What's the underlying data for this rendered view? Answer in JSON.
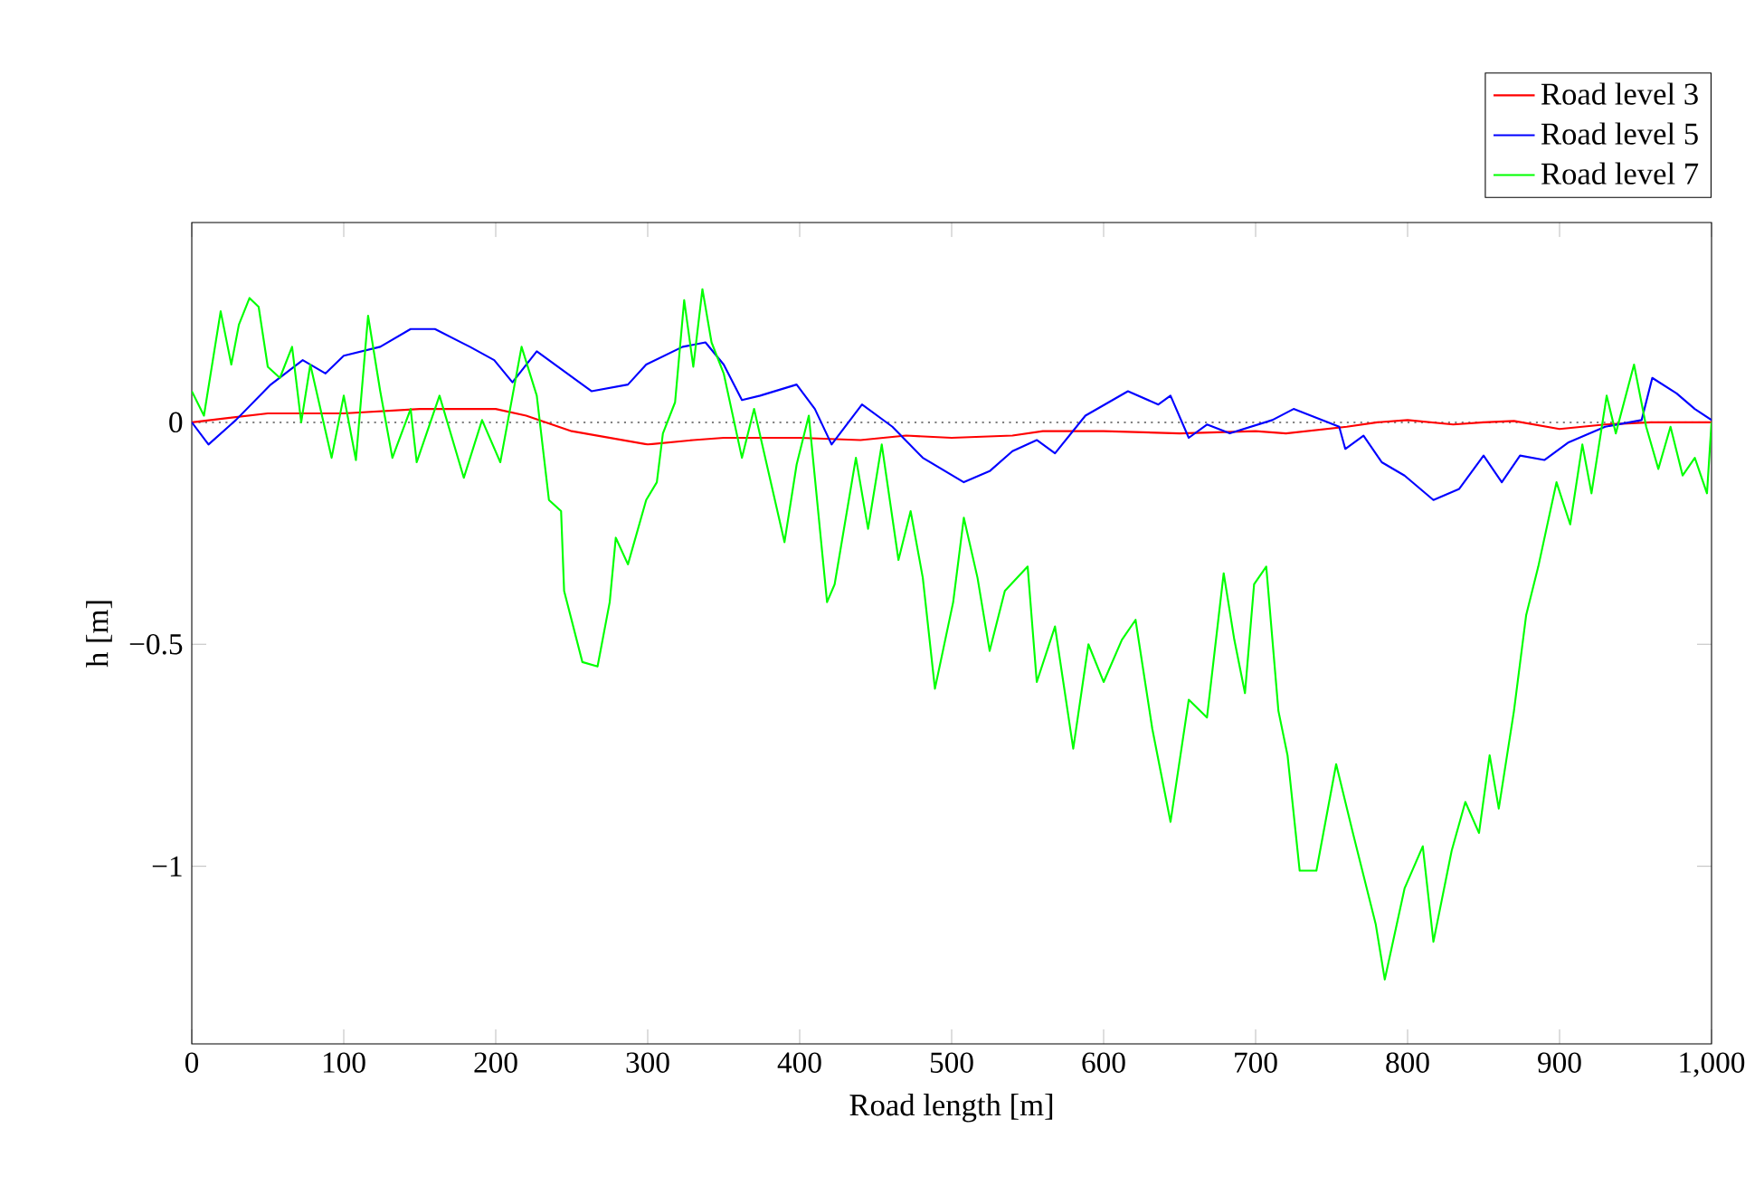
{
  "chart_data": {
    "type": "line",
    "xlabel": "Road length [m]",
    "ylabel": "h [m]",
    "xlim": [
      0,
      1000
    ],
    "ylim": [
      -1.4,
      0.45
    ],
    "xticks": [
      0,
      100,
      200,
      300,
      400,
      500,
      600,
      700,
      800,
      900,
      {
        "value": 1000,
        "label": "1,000"
      }
    ],
    "yticks": [
      {
        "value": -1,
        "label": "−1"
      },
      {
        "value": -0.5,
        "label": "−0.5"
      },
      0
    ],
    "legend": "top right",
    "grid": false,
    "marker": "none",
    "line_style": "solid",
    "ref_lines": [
      {
        "axis": "y",
        "value": 0,
        "color": "#808080",
        "line_style": "dotted"
      }
    ],
    "series": [
      {
        "name": "Road level 3",
        "color": "#ff0000",
        "x": [
          0,
          50,
          100,
          150,
          200,
          220,
          250,
          300,
          330,
          350,
          400,
          440,
          470,
          500,
          540,
          560,
          600,
          650,
          700,
          720,
          760,
          780,
          800,
          830,
          850,
          870,
          900,
          930,
          960,
          1000
        ],
        "values": [
          0,
          0.02,
          0.02,
          0.03,
          0.03,
          0.015,
          -0.02,
          -0.05,
          -0.04,
          -0.035,
          -0.035,
          -0.04,
          -0.03,
          -0.035,
          -0.03,
          -0.02,
          -0.02,
          -0.025,
          -0.02,
          -0.025,
          -0.01,
          0,
          0.005,
          -0.005,
          0,
          0.003,
          -0.015,
          -0.005,
          0,
          0
        ]
      },
      {
        "name": "Road level 5",
        "color": "#0000ff",
        "x": [
          0,
          11,
          29,
          52,
          73,
          88,
          100,
          124,
          144,
          160,
          183,
          199,
          211,
          227,
          255,
          263,
          287,
          299,
          323,
          338,
          350,
          362,
          374,
          398,
          410,
          421,
          441,
          461,
          481,
          508,
          525,
          540,
          556,
          568,
          588,
          616,
          636,
          644,
          656,
          668,
          683,
          711,
          725,
          755,
          759,
          771,
          783,
          798,
          817,
          834,
          850,
          862,
          874,
          890,
          906,
          930,
          954,
          961,
          977,
          989,
          1000
        ],
        "values": [
          0,
          -0.05,
          0.005,
          0.085,
          0.14,
          0.11,
          0.15,
          0.17,
          0.21,
          0.21,
          0.17,
          0.14,
          0.09,
          0.16,
          0.09,
          0.07,
          0.085,
          0.13,
          0.17,
          0.18,
          0.13,
          0.05,
          0.06,
          0.085,
          0.03,
          -0.05,
          0.04,
          -0.01,
          -0.08,
          -0.135,
          -0.11,
          -0.065,
          -0.04,
          -0.07,
          0.015,
          0.07,
          0.04,
          0.06,
          -0.035,
          -0.005,
          -0.025,
          0.005,
          0.03,
          -0.01,
          -0.06,
          -0.03,
          -0.09,
          -0.12,
          -0.175,
          -0.15,
          -0.075,
          -0.135,
          -0.075,
          -0.085,
          -0.045,
          -0.01,
          0.005,
          0.1,
          0.065,
          0.03,
          0.005
        ]
      },
      {
        "name": "Road level 7",
        "color": "#00ff00",
        "x": [
          0,
          8,
          19,
          26,
          31,
          38,
          44,
          50,
          58,
          66,
          72,
          78,
          92,
          100,
          108,
          116,
          124,
          132,
          144,
          148,
          163,
          179,
          191,
          203,
          217,
          227,
          235,
          243,
          245,
          257,
          267,
          275,
          279,
          287,
          299,
          306,
          310,
          318,
          324,
          330,
          336,
          342,
          350,
          362,
          370,
          390,
          398,
          406,
          418,
          423,
          437,
          445,
          454,
          465,
          473,
          481,
          489,
          501,
          508,
          517,
          525,
          535,
          550,
          556,
          568,
          580,
          590,
          600,
          612,
          621,
          632,
          644,
          656,
          668,
          679,
          686,
          693,
          699,
          707,
          715,
          721,
          729,
          740,
          753,
          764,
          779,
          785,
          798,
          810,
          817,
          829,
          838,
          847,
          854,
          860,
          870,
          878,
          886,
          898,
          907,
          915,
          921,
          931,
          937,
          949,
          957,
          965,
          973,
          981,
          989,
          997,
          1000
        ],
        "values": [
          0.07,
          0.015,
          0.25,
          0.13,
          0.22,
          0.28,
          0.26,
          0.125,
          0.1,
          0.17,
          0,
          0.13,
          -0.08,
          0.06,
          -0.085,
          0.24,
          0.07,
          -0.08,
          0.03,
          -0.09,
          0.06,
          -0.125,
          0.005,
          -0.09,
          0.17,
          0.06,
          -0.175,
          -0.2,
          -0.38,
          -0.54,
          -0.55,
          -0.405,
          -0.26,
          -0.32,
          -0.175,
          -0.135,
          -0.025,
          0.045,
          0.275,
          0.125,
          0.3,
          0.18,
          0.11,
          -0.08,
          0.03,
          -0.27,
          -0.095,
          0.015,
          -0.405,
          -0.365,
          -0.08,
          -0.24,
          -0.05,
          -0.31,
          -0.2,
          -0.35,
          -0.6,
          -0.405,
          -0.215,
          -0.35,
          -0.515,
          -0.38,
          -0.325,
          -0.585,
          -0.46,
          -0.735,
          -0.5,
          -0.585,
          -0.49,
          -0.445,
          -0.69,
          -0.9,
          -0.625,
          -0.665,
          -0.34,
          -0.49,
          -0.61,
          -0.365,
          -0.325,
          -0.65,
          -0.75,
          -1.01,
          -1.01,
          -0.77,
          -0.925,
          -1.13,
          -1.255,
          -1.05,
          -0.955,
          -1.17,
          -0.965,
          -0.855,
          -0.925,
          -0.75,
          -0.87,
          -0.65,
          -0.435,
          -0.325,
          -0.135,
          -0.23,
          -0.05,
          -0.16,
          0.06,
          -0.025,
          0.13,
          -0.01,
          -0.105,
          -0.01,
          -0.12,
          -0.08,
          -0.16,
          0
        ]
      }
    ]
  }
}
